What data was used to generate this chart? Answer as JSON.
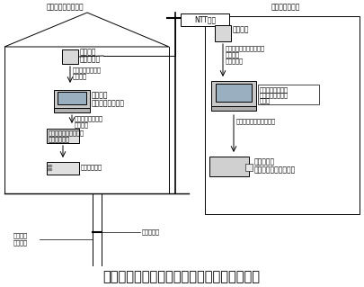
{
  "title": "図１　新しい地盤沈下観測システムの概念図",
  "title_fontsize": 10.5,
  "bg_color": "#f5f5f0",
  "left_header": "佐賀・有明東小学校",
  "right_header": "国立環境研究所",
  "ntt_label": "NTT回線",
  "left_modem1": "通信装置",
  "left_modem2": "（モデム）",
  "left_datasend1": "・データ送信プロ",
  "left_datasend2": "　グラム",
  "left_pc1": "パソコン",
  "left_pc2": "（データの保管）",
  "left_input1": "・データ入力プロ",
  "left_input2": "　グラム",
  "left_logger1": "ロガー（パソコンへの",
  "left_logger2": "　出力装置）",
  "left_sensor": "磁歪式沈下計",
  "left_pore": "間隙水圧計",
  "left_wire1": "沈下計用",
  "left_wire2": "ワイヤー",
  "right_modem": "通信装置",
  "right_ds1": "・データ送受信制御プロ",
  "right_ds2": "　グラム",
  "right_ds3": "　パソコン",
  "right_pcnote1": "観測井のパソコン",
  "right_pcnote2": "による制御データ",
  "right_pcnote3": "の処理",
  "right_dataproc": "・データ処理プログラム",
  "right_printer1": "プリンター",
  "right_printer2": "（処理データの出力）"
}
